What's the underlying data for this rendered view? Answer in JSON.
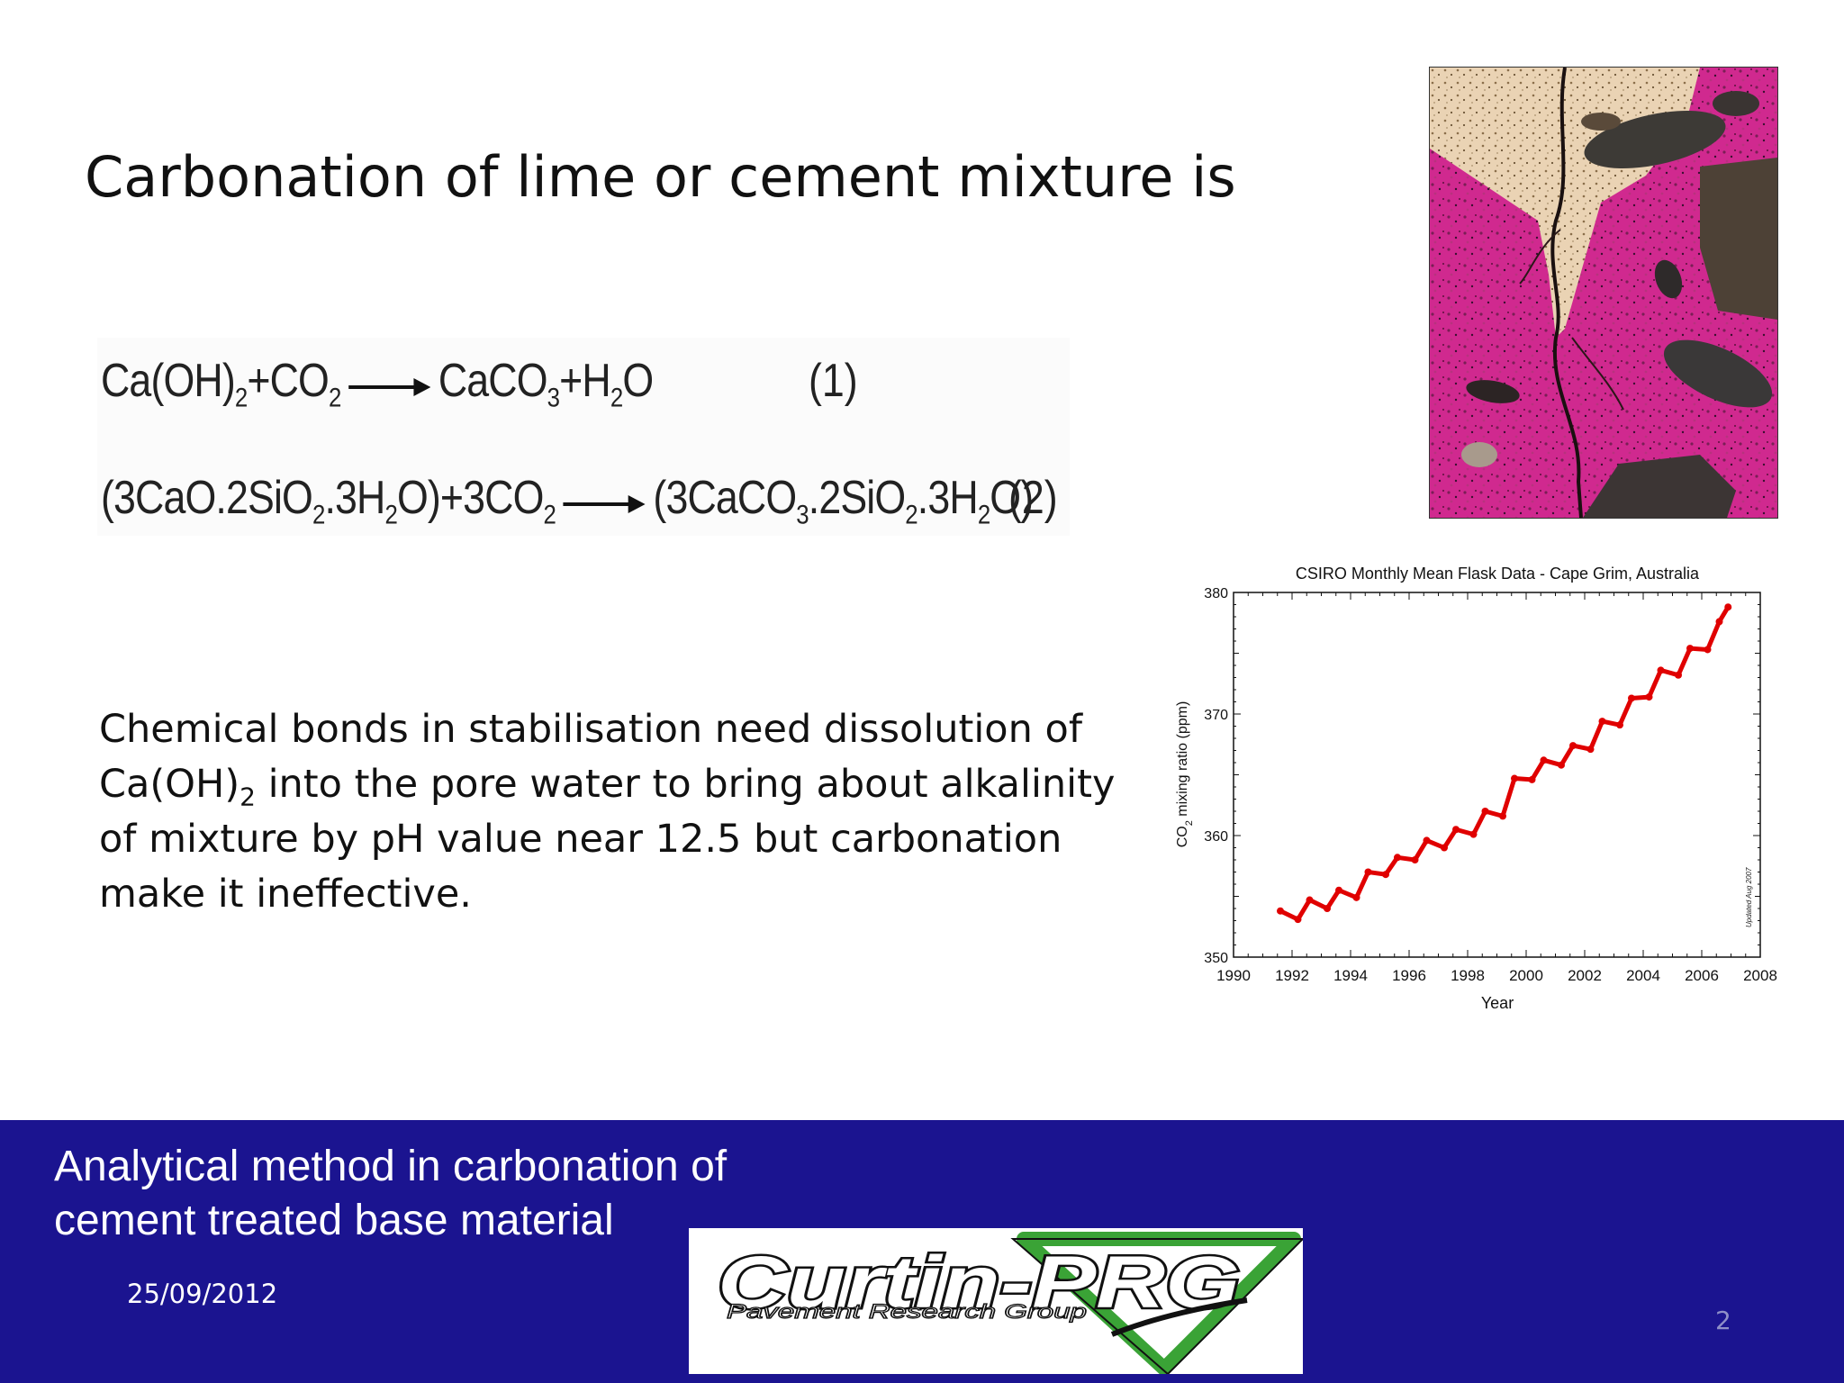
{
  "slide": {
    "title": "Carbonation of lime or cement mixture is",
    "equations": [
      {
        "reactants": [
          {
            "t": "Ca(OH)"
          },
          {
            "s": "2"
          },
          {
            "t": "+CO"
          },
          {
            "s": "2"
          }
        ],
        "products": [
          {
            "t": "CaCO"
          },
          {
            "s": "3"
          },
          {
            "t": "+H"
          },
          {
            "s": "2"
          },
          {
            "t": "O"
          }
        ],
        "number": "(1)"
      },
      {
        "reactants": [
          {
            "t": "(3CaO.2SiO"
          },
          {
            "s": "2"
          },
          {
            "t": ".3H"
          },
          {
            "s": "2"
          },
          {
            "t": "O)+3CO"
          },
          {
            "s": "2"
          }
        ],
        "products": [
          {
            "t": "(3CaCO"
          },
          {
            "s": "3"
          },
          {
            "t": ".2SiO"
          },
          {
            "s": "2"
          },
          {
            "t": ".3H"
          },
          {
            "s": "2"
          },
          {
            "t": "O)"
          }
        ],
        "number": "(2)"
      }
    ],
    "body_parts": [
      {
        "t": "Chemical bonds in stabilisation need dissolution of Ca(OH)"
      },
      {
        "s": "2"
      },
      {
        "t": " into the pore water to bring about  alkalinity of mixture by pH value near 12.5 but carbonation make it ineffective."
      }
    ],
    "photo_icon": "concrete-crack-photo"
  },
  "chart_data": {
    "type": "line",
    "title": "CSIRO Monthly Mean Flask Data - Cape Grim, Australia",
    "xlabel": "Year",
    "ylabel_parts": [
      {
        "t": "CO"
      },
      {
        "s": "2"
      },
      {
        "t": " mixing ratio (ppm)"
      }
    ],
    "xlim": [
      1990,
      2008
    ],
    "ylim": [
      350,
      380
    ],
    "xticks": [
      "1990",
      "1992",
      "1994",
      "1996",
      "1998",
      "2000",
      "2002",
      "2004",
      "2006",
      "2008"
    ],
    "yticks": [
      "350",
      "360",
      "370",
      "380"
    ],
    "grid": false,
    "series": [
      {
        "color": "#e00000",
        "x": [
          1991.6,
          1992.2,
          1992.6,
          1993.2,
          1993.6,
          1994.2,
          1994.6,
          1995.2,
          1995.6,
          1996.2,
          1996.6,
          1997.2,
          1997.6,
          1998.2,
          1998.6,
          1999.2,
          1999.6,
          2000.2,
          2000.6,
          2001.2,
          2001.6,
          2002.2,
          2002.6,
          2003.2,
          2003.6,
          2004.2,
          2004.6,
          2005.2,
          2005.6,
          2006.2,
          2006.6,
          2006.9
        ],
        "y": [
          353.8,
          353.1,
          354.7,
          354.0,
          355.5,
          354.9,
          357.0,
          356.8,
          358.2,
          358.0,
          359.6,
          359.0,
          360.5,
          360.1,
          362.0,
          361.6,
          364.7,
          364.6,
          366.2,
          365.8,
          367.4,
          367.1,
          369.4,
          369.1,
          371.3,
          371.4,
          373.6,
          373.2,
          375.4,
          375.3,
          377.6,
          378.8
        ]
      }
    ],
    "annotation": "Updated Aug 2007"
  },
  "footer": {
    "title": "Analytical method in carbonation of cement treated base material",
    "date": "25/09/2012",
    "page_number": "2",
    "logo_main": "Curtin-PRG",
    "logo_sub": "Pavement Research Group"
  }
}
